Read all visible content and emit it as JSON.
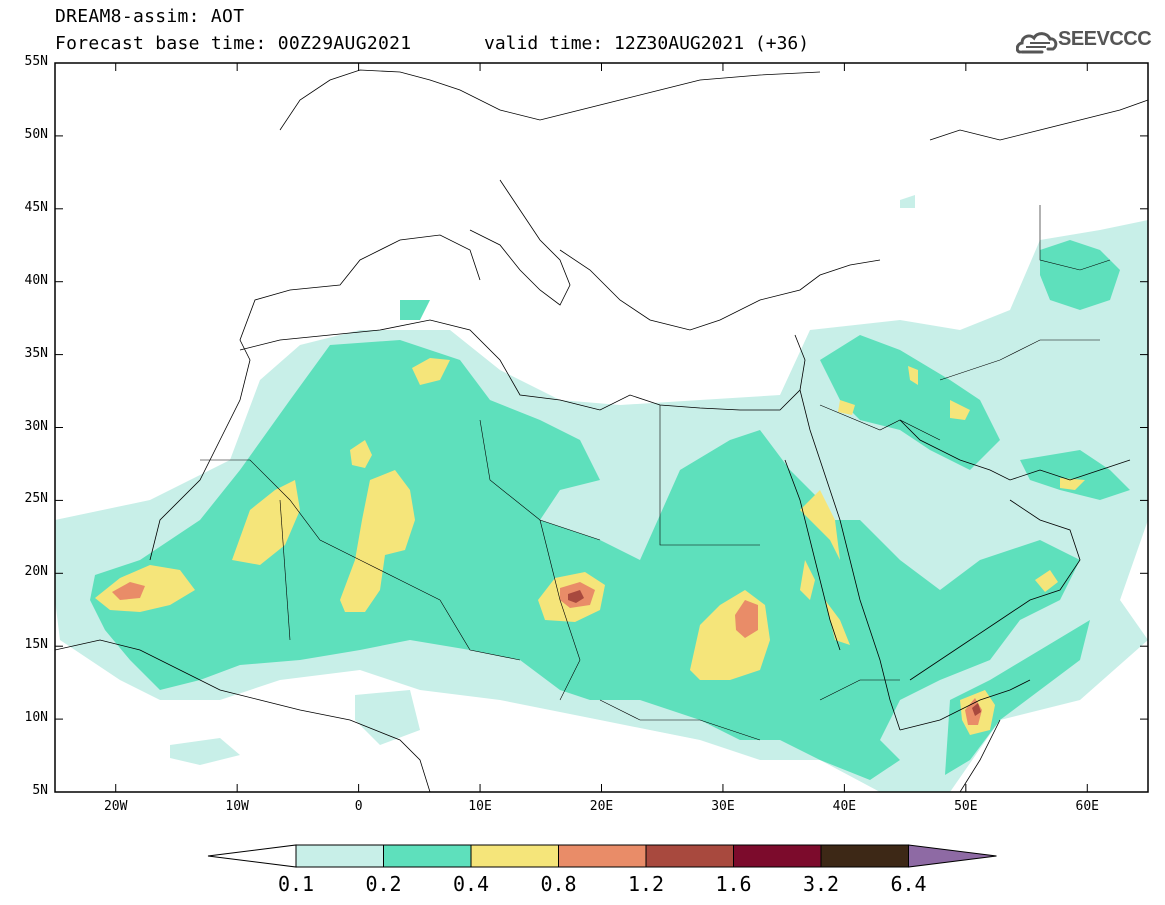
{
  "title": {
    "line1": "DREAM8-assim: AOT",
    "line2": "Forecast base time: 00Z29AUG2021",
    "valid": "valid time: 12Z30AUG2021 (+36)"
  },
  "logo": {
    "text": "SEEVCCC",
    "icon": "cloud-logo-icon"
  },
  "axes": {
    "lat_labels": [
      "55N",
      "50N",
      "45N",
      "40N",
      "35N",
      "30N",
      "25N",
      "20N",
      "15N",
      "10N",
      "5N"
    ],
    "lon_labels": [
      "20W",
      "10W",
      "0",
      "10E",
      "20E",
      "30E",
      "40E",
      "50E",
      "60E"
    ]
  },
  "colorbar": {
    "labels": [
      "0.1",
      "0.2",
      "0.4",
      "0.8",
      "1.2",
      "1.6",
      "3.2",
      "6.4"
    ],
    "colors": [
      "#ffffff",
      "#c8efe8",
      "#5ee0bc",
      "#f5e57a",
      "#e98c68",
      "#a8493e",
      "#7c0b2c",
      "#3d2816",
      "#8e6aa4"
    ]
  },
  "map_data": {
    "field": "AOT",
    "lon_range": [
      -25,
      65
    ],
    "lat_range": [
      5,
      55
    ]
  }
}
